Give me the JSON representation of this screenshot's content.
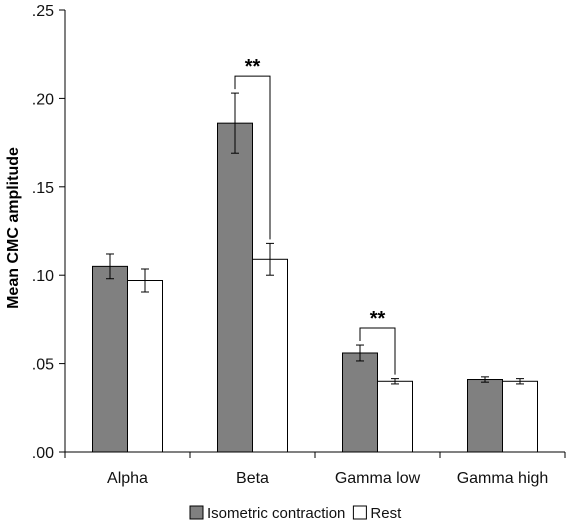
{
  "chart_data": {
    "type": "bar",
    "title": "",
    "xlabel": "",
    "ylabel": "Mean CMC amplitude",
    "ylim": [
      0,
      0.25
    ],
    "y_ticks": [
      {
        "value": 0.0,
        "label": ".00"
      },
      {
        "value": 0.05,
        "label": ".05"
      },
      {
        "value": 0.1,
        "label": ".10"
      },
      {
        "value": 0.15,
        "label": ".15"
      },
      {
        "value": 0.2,
        "label": ".20"
      },
      {
        "value": 0.25,
        "label": ".25"
      }
    ],
    "categories": [
      "Alpha",
      "Beta",
      "Gamma low",
      "Gamma high"
    ],
    "series": [
      {
        "name": "Isometric contraction",
        "color": "#808080",
        "values": [
          0.105,
          0.186,
          0.056,
          0.041
        ],
        "errors": [
          0.007,
          0.017,
          0.0045,
          0.0015
        ]
      },
      {
        "name": "Rest",
        "color": "#ffffff",
        "values": [
          0.097,
          0.109,
          0.04,
          0.04
        ],
        "errors": [
          0.0065,
          0.009,
          0.0015,
          0.0015
        ]
      }
    ],
    "significance": [
      {
        "category_index": 1,
        "label": "**"
      },
      {
        "category_index": 2,
        "label": "**"
      }
    ],
    "grid": false,
    "legend_position": "bottom"
  }
}
